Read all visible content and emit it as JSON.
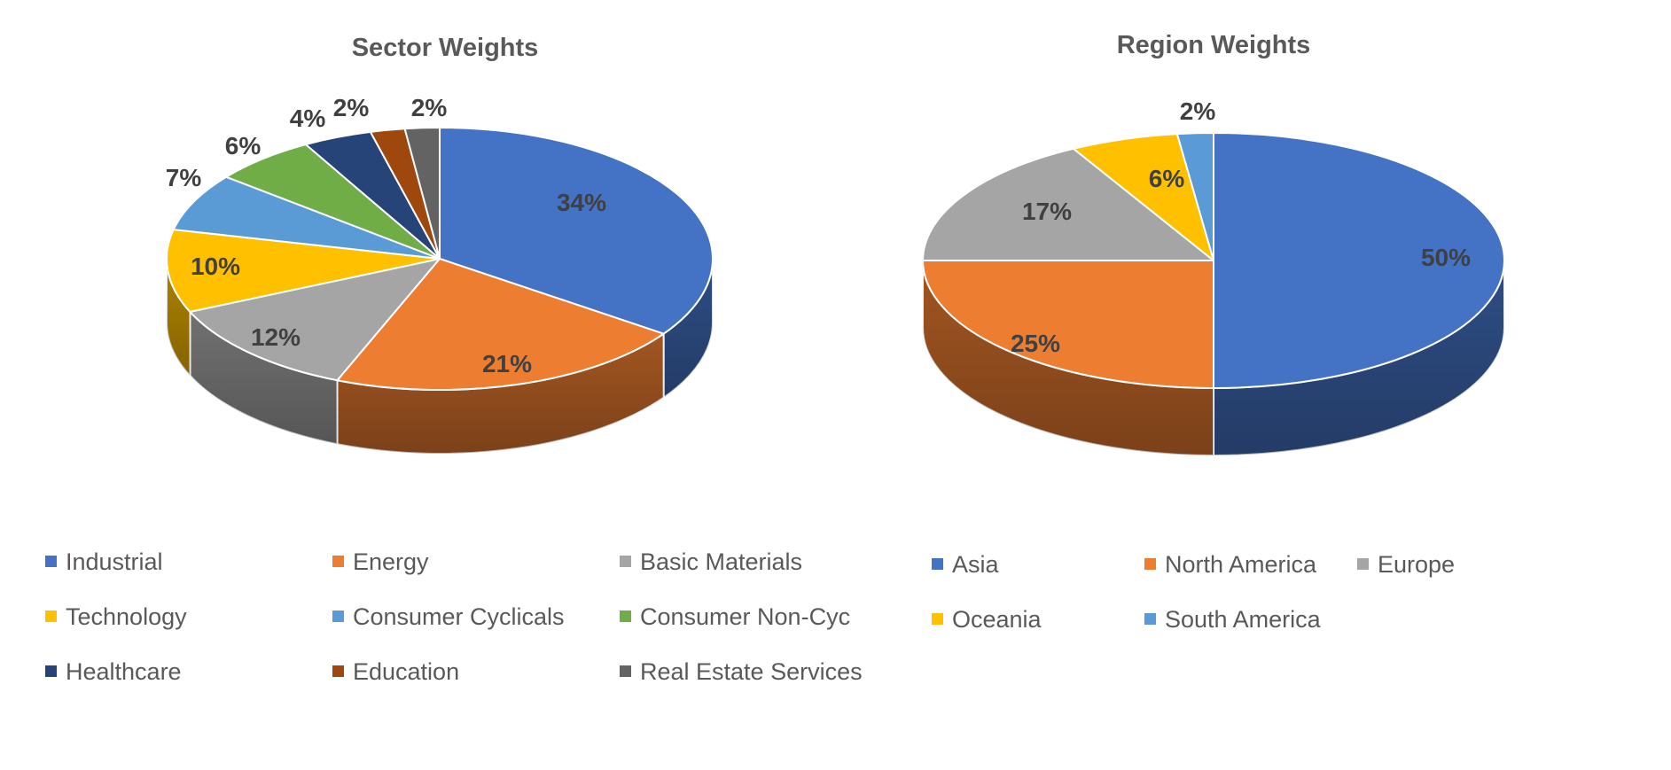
{
  "chart_data": [
    {
      "type": "pie",
      "title": "Sector Weights",
      "style": "3d",
      "legend_position": "bottom",
      "data_labels": "percent",
      "categories": [
        "Industrial",
        "Energy",
        "Basic Materials",
        "Technology",
        "Consumer Cyclicals",
        "Consumer Non-Cyc",
        "Healthcare",
        "Education",
        "Real Estate Services"
      ],
      "values": [
        34,
        21,
        12,
        10,
        7,
        6,
        4,
        2,
        2
      ],
      "labels": [
        "34%",
        "21%",
        "12%",
        "10%",
        "7%",
        "6%",
        "4%",
        "2%",
        "2%"
      ],
      "colors": [
        "#4472C4",
        "#ED7D31",
        "#A5A5A5",
        "#FFC000",
        "#5B9BD5",
        "#70AD47",
        "#264478",
        "#9E480E",
        "#636363"
      ]
    },
    {
      "type": "pie",
      "title": "Region Weights",
      "style": "3d",
      "legend_position": "bottom",
      "data_labels": "percent",
      "categories": [
        "Asia",
        "North America",
        "Europe",
        "Oceania",
        "South America"
      ],
      "values": [
        50,
        25,
        17,
        6,
        2
      ],
      "labels": [
        "50%",
        "25%",
        "17%",
        "6%",
        "2%"
      ],
      "colors": [
        "#4472C4",
        "#ED7D31",
        "#A5A5A5",
        "#FFC000",
        "#5B9BD5"
      ]
    }
  ]
}
